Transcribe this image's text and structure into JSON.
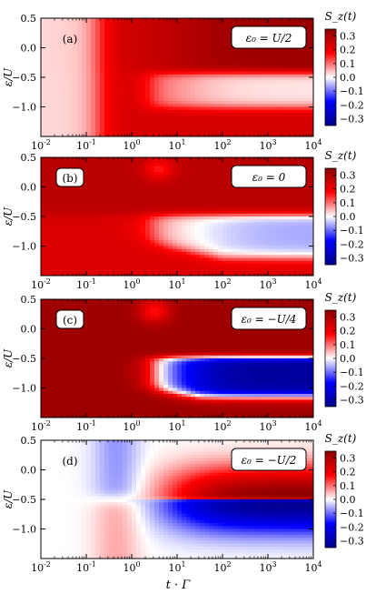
{
  "figure": {
    "shared_xlabel": "t · Γ",
    "colorbar_label": "S_z(t)"
  },
  "chart_data": [
    {
      "type": "heatmap",
      "panel_label": "(a)",
      "annotation": "ε₀ = U/2",
      "ylabel": "ε/U",
      "x_scale": "log",
      "xlim": [
        0.01,
        10000
      ],
      "ylim": [
        -1.5,
        0.5
      ],
      "x_ticks": [
        0.01,
        0.1,
        1,
        10,
        100,
        1000,
        10000
      ],
      "x_tick_labels": [
        "10-2",
        "10-1",
        "100",
        "101",
        "102",
        "103",
        "104"
      ],
      "y_ticks": [
        0.5,
        0.0,
        -0.5,
        -1.0
      ],
      "y_tick_labels": [
        "0.5",
        "0.0",
        "−0.5",
        "−1.0"
      ],
      "colorbar": {
        "range": [
          -0.35,
          0.35
        ],
        "ticks": [
          "0.3",
          "0.2",
          "0.1",
          "0.0",
          "−0.1",
          "−0.2",
          "−0.3"
        ]
      }
    },
    {
      "type": "heatmap",
      "panel_label": "(b)",
      "annotation": "ε₀ = 0",
      "ylabel": "ε/U",
      "x_scale": "log",
      "xlim": [
        0.01,
        10000
      ],
      "ylim": [
        -1.5,
        0.5
      ],
      "x_ticks": [
        0.01,
        0.1,
        1,
        10,
        100,
        1000,
        10000
      ],
      "x_tick_labels": [
        "10-2",
        "10-1",
        "100",
        "101",
        "102",
        "103",
        "104"
      ],
      "y_ticks": [
        0.5,
        0.0,
        -0.5,
        -1.0
      ],
      "y_tick_labels": [
        "0.5",
        "0.0",
        "−0.5",
        "−1.0"
      ],
      "colorbar": {
        "range": [
          -0.35,
          0.35
        ],
        "ticks": [
          "0.3",
          "0.2",
          "0.1",
          "0.0",
          "−0.1",
          "−0.2",
          "−0.3"
        ]
      }
    },
    {
      "type": "heatmap",
      "panel_label": "(c)",
      "annotation": "ε₀ = −U/4",
      "ylabel": "ε/U",
      "x_scale": "log",
      "xlim": [
        0.01,
        10000
      ],
      "ylim": [
        -1.5,
        0.5
      ],
      "x_ticks": [
        0.01,
        0.1,
        1,
        10,
        100,
        1000,
        10000
      ],
      "x_tick_labels": [
        "10-2",
        "10-1",
        "100",
        "101",
        "102",
        "103",
        "104"
      ],
      "y_ticks": [
        0.5,
        0.0,
        -0.5,
        -1.0
      ],
      "y_tick_labels": [
        "0.5",
        "0.0",
        "−0.5",
        "−1.0"
      ],
      "colorbar": {
        "range": [
          -0.35,
          0.35
        ],
        "ticks": [
          "0.3",
          "0.2",
          "0.1",
          "0.0",
          "−0.1",
          "−0.2",
          "−0.3"
        ]
      }
    },
    {
      "type": "heatmap",
      "panel_label": "(d)",
      "annotation": "ε₀ = −U/2",
      "ylabel": "ε/U",
      "x_scale": "log",
      "xlim": [
        0.01,
        10000
      ],
      "ylim": [
        -1.5,
        0.5
      ],
      "x_ticks": [
        0.01,
        0.1,
        1,
        10,
        100,
        1000,
        10000
      ],
      "x_tick_labels": [
        "10-2",
        "10-1",
        "100",
        "101",
        "102",
        "103",
        "104"
      ],
      "y_ticks": [
        0.5,
        0.0,
        -0.5,
        -1.0
      ],
      "y_tick_labels": [
        "0.5",
        "0.0",
        "−0.5",
        "−1.0"
      ],
      "colorbar": {
        "range": [
          -0.35,
          0.35
        ],
        "ticks": [
          "0.3",
          "0.2",
          "0.1",
          "0.0",
          "−0.1",
          "−0.2",
          "−0.3"
        ]
      }
    }
  ]
}
